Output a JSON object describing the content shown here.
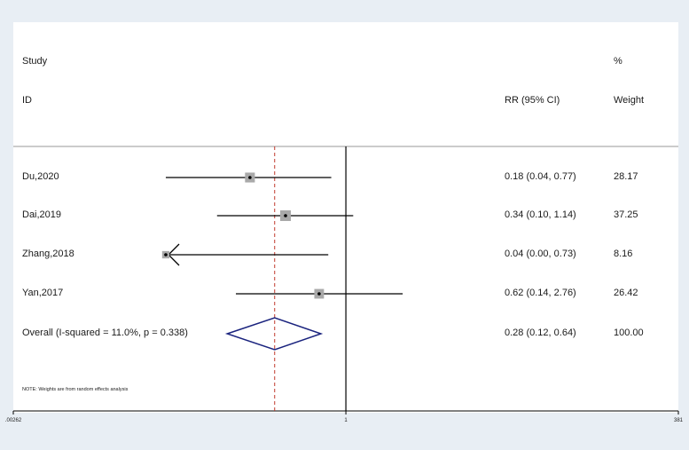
{
  "headers": {
    "study_line1": "Study",
    "study_line2": "ID",
    "rr_header": "RR (95% CI)",
    "weight_line1": "%",
    "weight_line2": "Weight"
  },
  "note": "NOTE: Weights are from random effects analysis",
  "colors": {
    "background": "#e8eef4",
    "plot_background": "#ffffff",
    "ci_line": "#000000",
    "weight_box": "#a9a9a9",
    "diamond": "#1a237e",
    "overall_line": "#c0392b"
  },
  "chart_data": {
    "type": "forest",
    "x_scale": "log",
    "xlim": [
      0.00262,
      381
    ],
    "null_value": 1,
    "x_ticks": [
      {
        "value": 0.00262,
        "label": ".00262"
      },
      {
        "value": 1,
        "label": "1"
      },
      {
        "value": 381,
        "label": "381"
      }
    ],
    "studies": [
      {
        "id": "Du,2020",
        "rr": 0.18,
        "lower": 0.04,
        "upper": 0.77,
        "ci_text": "0.18 (0.04, 0.77)",
        "weight": 28.17,
        "weight_text": "28.17"
      },
      {
        "id": "Dai,2019",
        "rr": 0.34,
        "lower": 0.1,
        "upper": 1.14,
        "ci_text": "0.34 (0.10, 1.14)",
        "weight": 37.25,
        "weight_text": "37.25"
      },
      {
        "id": "Zhang,2018",
        "rr": 0.04,
        "lower": 0.0,
        "upper": 0.73,
        "ci_text": "0.04 (0.00, 0.73)",
        "weight": 8.16,
        "weight_text": "8.16",
        "lower_arrow": true
      },
      {
        "id": "Yan,2017",
        "rr": 0.62,
        "lower": 0.14,
        "upper": 2.76,
        "ci_text": "0.62 (0.14, 2.76)",
        "weight": 26.42,
        "weight_text": "26.42"
      }
    ],
    "overall": {
      "label": "Overall  (I-squared = 11.0%, p = 0.338)",
      "rr": 0.28,
      "lower": 0.12,
      "upper": 0.64,
      "ci_text": "0.28 (0.12, 0.64)",
      "weight_text": "100.00"
    }
  }
}
